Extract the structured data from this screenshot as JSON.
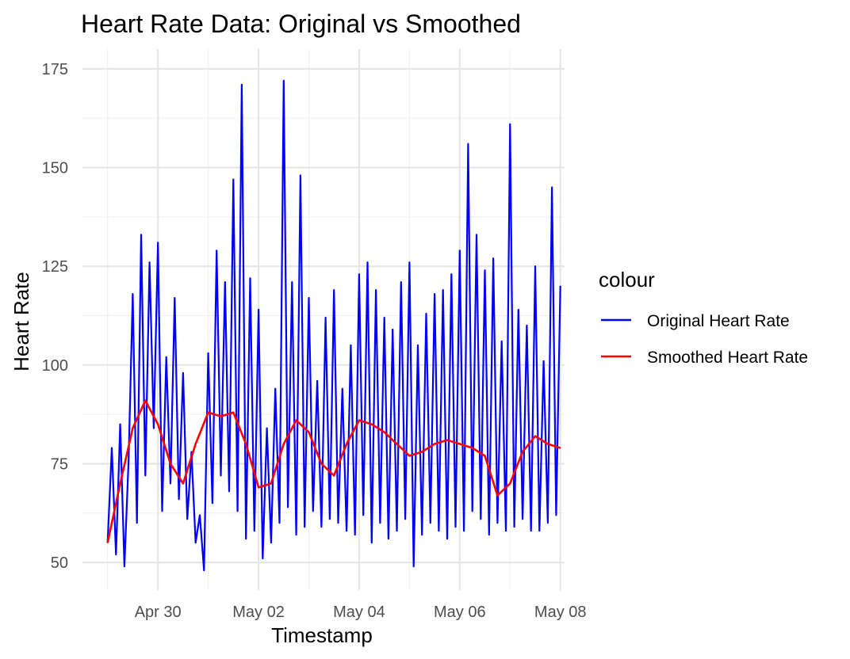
{
  "chart_data": {
    "type": "line",
    "title": "Heart Rate Data: Original vs Smoothed",
    "xlabel": "Timestamp",
    "ylabel": "Heart Rate",
    "x_tick_labels": [
      "Apr 30",
      "May 02",
      "May 04",
      "May 06",
      "May 08"
    ],
    "x_ticks": [
      "2024-04-30",
      "2024-05-02",
      "2024-05-04",
      "2024-05-06",
      "2024-05-08"
    ],
    "y_ticks": [
      50,
      75,
      100,
      125,
      150,
      175
    ],
    "xlim": [
      "2024-04-28T12:00",
      "2024-05-08T02:00"
    ],
    "ylim": [
      43,
      180
    ],
    "grid": true,
    "legend": {
      "title": "colour",
      "position": "right",
      "entries": [
        {
          "label": "Original Heart Rate",
          "color": "#0000ff"
        },
        {
          "label": "Smoothed Heart Rate",
          "color": "#ff0000"
        }
      ]
    },
    "series": [
      {
        "name": "Original Heart Rate",
        "color": "#0000ff",
        "x": [
          "2024-04-29T00:00",
          "2024-04-29T02:00",
          "2024-04-29T04:00",
          "2024-04-29T06:00",
          "2024-04-29T08:00",
          "2024-04-29T10:00",
          "2024-04-29T12:00",
          "2024-04-29T14:00",
          "2024-04-29T16:00",
          "2024-04-29T18:00",
          "2024-04-29T20:00",
          "2024-04-29T22:00",
          "2024-04-30T00:00",
          "2024-04-30T02:00",
          "2024-04-30T04:00",
          "2024-04-30T06:00",
          "2024-04-30T08:00",
          "2024-04-30T10:00",
          "2024-04-30T12:00",
          "2024-04-30T14:00",
          "2024-04-30T16:00",
          "2024-04-30T18:00",
          "2024-04-30T20:00",
          "2024-04-30T22:00",
          "2024-05-01T00:00",
          "2024-05-01T02:00",
          "2024-05-01T04:00",
          "2024-05-01T06:00",
          "2024-05-01T08:00",
          "2024-05-01T10:00",
          "2024-05-01T12:00",
          "2024-05-01T14:00",
          "2024-05-01T16:00",
          "2024-05-01T18:00",
          "2024-05-01T20:00",
          "2024-05-01T22:00",
          "2024-05-02T00:00",
          "2024-05-02T02:00",
          "2024-05-02T04:00",
          "2024-05-02T06:00",
          "2024-05-02T08:00",
          "2024-05-02T10:00",
          "2024-05-02T12:00",
          "2024-05-02T14:00",
          "2024-05-02T16:00",
          "2024-05-02T18:00",
          "2024-05-02T20:00",
          "2024-05-02T22:00",
          "2024-05-03T00:00",
          "2024-05-03T02:00",
          "2024-05-03T04:00",
          "2024-05-03T06:00",
          "2024-05-03T08:00",
          "2024-05-03T10:00",
          "2024-05-03T12:00",
          "2024-05-03T14:00",
          "2024-05-03T16:00",
          "2024-05-03T18:00",
          "2024-05-03T20:00",
          "2024-05-03T22:00",
          "2024-05-04T00:00",
          "2024-05-04T02:00",
          "2024-05-04T04:00",
          "2024-05-04T06:00",
          "2024-05-04T08:00",
          "2024-05-04T10:00",
          "2024-05-04T12:00",
          "2024-05-04T14:00",
          "2024-05-04T16:00",
          "2024-05-04T18:00",
          "2024-05-04T20:00",
          "2024-05-04T22:00",
          "2024-05-05T00:00",
          "2024-05-05T02:00",
          "2024-05-05T04:00",
          "2024-05-05T06:00",
          "2024-05-05T08:00",
          "2024-05-05T10:00",
          "2024-05-05T12:00",
          "2024-05-05T14:00",
          "2024-05-05T16:00",
          "2024-05-05T18:00",
          "2024-05-05T20:00",
          "2024-05-05T22:00",
          "2024-05-06T00:00",
          "2024-05-06T02:00",
          "2024-05-06T04:00",
          "2024-05-06T06:00",
          "2024-05-06T08:00",
          "2024-05-06T10:00",
          "2024-05-06T12:00",
          "2024-05-06T14:00",
          "2024-05-06T16:00",
          "2024-05-06T18:00",
          "2024-05-06T20:00",
          "2024-05-06T22:00",
          "2024-05-07T00:00",
          "2024-05-07T02:00",
          "2024-05-07T04:00",
          "2024-05-07T06:00",
          "2024-05-07T08:00",
          "2024-05-07T10:00",
          "2024-05-07T12:00",
          "2024-05-07T14:00",
          "2024-05-07T16:00",
          "2024-05-07T18:00",
          "2024-05-07T20:00",
          "2024-05-07T22:00",
          "2024-05-08T00:00"
        ],
        "values": [
          55,
          79,
          52,
          85,
          49,
          76,
          118,
          60,
          133,
          72,
          126,
          84,
          131,
          63,
          102,
          70,
          117,
          66,
          98,
          61,
          78,
          55,
          62,
          48,
          103,
          65,
          129,
          72,
          121,
          68,
          147,
          63,
          171,
          56,
          122,
          58,
          114,
          51,
          84,
          55,
          94,
          60,
          172,
          64,
          121,
          57,
          148,
          59,
          117,
          63,
          96,
          59,
          112,
          61,
          119,
          60,
          94,
          58,
          105,
          57,
          123,
          62,
          126,
          55,
          119,
          60,
          112,
          56,
          109,
          58,
          121,
          61,
          126,
          49,
          105,
          57,
          113,
          60,
          118,
          58,
          119,
          56,
          123,
          59,
          129,
          58,
          156,
          63,
          133,
          61,
          124,
          57,
          127,
          60,
          106,
          58,
          161,
          59,
          114,
          61,
          110,
          58,
          125,
          58,
          101,
          60,
          145,
          62,
          120
        ]
      },
      {
        "name": "Smoothed Heart Rate",
        "color": "#ff0000",
        "x": [
          "2024-04-29T00:00",
          "2024-04-29T06:00",
          "2024-04-29T12:00",
          "2024-04-29T18:00",
          "2024-04-30T00:00",
          "2024-04-30T06:00",
          "2024-04-30T12:00",
          "2024-04-30T18:00",
          "2024-05-01T00:00",
          "2024-05-01T06:00",
          "2024-05-01T12:00",
          "2024-05-01T18:00",
          "2024-05-02T00:00",
          "2024-05-02T06:00",
          "2024-05-02T12:00",
          "2024-05-02T18:00",
          "2024-05-03T00:00",
          "2024-05-03T06:00",
          "2024-05-03T12:00",
          "2024-05-03T18:00",
          "2024-05-04T00:00",
          "2024-05-04T06:00",
          "2024-05-04T12:00",
          "2024-05-04T18:00",
          "2024-05-05T00:00",
          "2024-05-05T06:00",
          "2024-05-05T12:00",
          "2024-05-05T18:00",
          "2024-05-06T00:00",
          "2024-05-06T06:00",
          "2024-05-06T12:00",
          "2024-05-06T18:00",
          "2024-05-07T00:00",
          "2024-05-07T06:00",
          "2024-05-07T12:00",
          "2024-05-07T18:00",
          "2024-05-08T00:00"
        ],
        "values": [
          55,
          70,
          84,
          91,
          85,
          75,
          70,
          80,
          88,
          87,
          88,
          80,
          69,
          70,
          80,
          86,
          83,
          75,
          72,
          80,
          86,
          85,
          83,
          80,
          77,
          78,
          80,
          81,
          80,
          79,
          77,
          67,
          70,
          78,
          82,
          80,
          79
        ]
      }
    ]
  }
}
